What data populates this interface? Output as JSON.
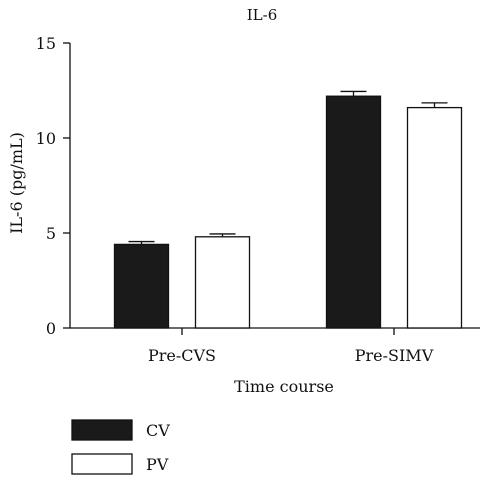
{
  "chart_data": {
    "type": "bar",
    "title": "IL-6",
    "xlabel": "Time course",
    "ylabel": "IL-6 (pg/mL)",
    "categories": [
      "Pre-CVS",
      "Pre-SIMV"
    ],
    "ylim": [
      0,
      15
    ],
    "yticks": [
      0,
      5,
      10,
      15
    ],
    "series": [
      {
        "name": "CV",
        "values": [
          4.4,
          12.2
        ],
        "errors": [
          0.15,
          0.25
        ],
        "color": "#1a1a1a"
      },
      {
        "name": "PV",
        "values": [
          4.8,
          11.6
        ],
        "errors": [
          0.15,
          0.25
        ],
        "color": "#ffffff"
      }
    ],
    "grid": false,
    "legend_position": "bottom-left"
  }
}
